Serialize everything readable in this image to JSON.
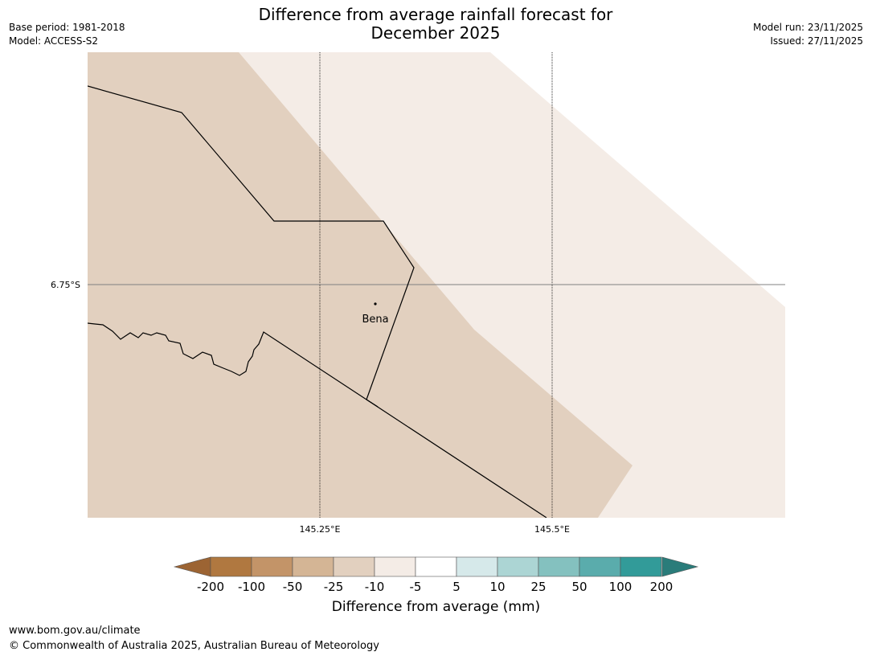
{
  "title": {
    "line1": "Difference from average rainfall forecast for",
    "line2": "December 2025"
  },
  "meta": {
    "base_period": "Base period: 1981-2018",
    "model": "Model: ACCESS-S2",
    "model_run": "Model run: 23/11/2025",
    "issued": "Issued: 27/11/2025"
  },
  "map": {
    "latitude_labels": [
      "6.75°S"
    ],
    "longitude_labels": [
      "145.25°E",
      "145.5°E"
    ],
    "place": {
      "name": "Bena"
    },
    "fill_colors": {
      "neg_10_25": "#e2d0bf",
      "neg_5_10": "#f4ece6"
    }
  },
  "colorbar": {
    "title": "Difference from average (mm)",
    "tick_labels": [
      "-200",
      "-100",
      "-50",
      "-25",
      "-10",
      "-5",
      "5",
      "10",
      "25",
      "50",
      "100",
      "200"
    ],
    "colors": [
      "#9c6433",
      "#b07840",
      "#c39468",
      "#d4b595",
      "#e2d0bf",
      "#f4ece6",
      "#ffffff",
      "#d6e9ea",
      "#acd5d4",
      "#84c1bf",
      "#5aacac",
      "#329b99",
      "#2a7c7a"
    ]
  },
  "footer": {
    "url": "www.bom.gov.au/climate",
    "copyright": "© Commonwealth of Australia 2025, Australian Bureau of Meteorology"
  }
}
